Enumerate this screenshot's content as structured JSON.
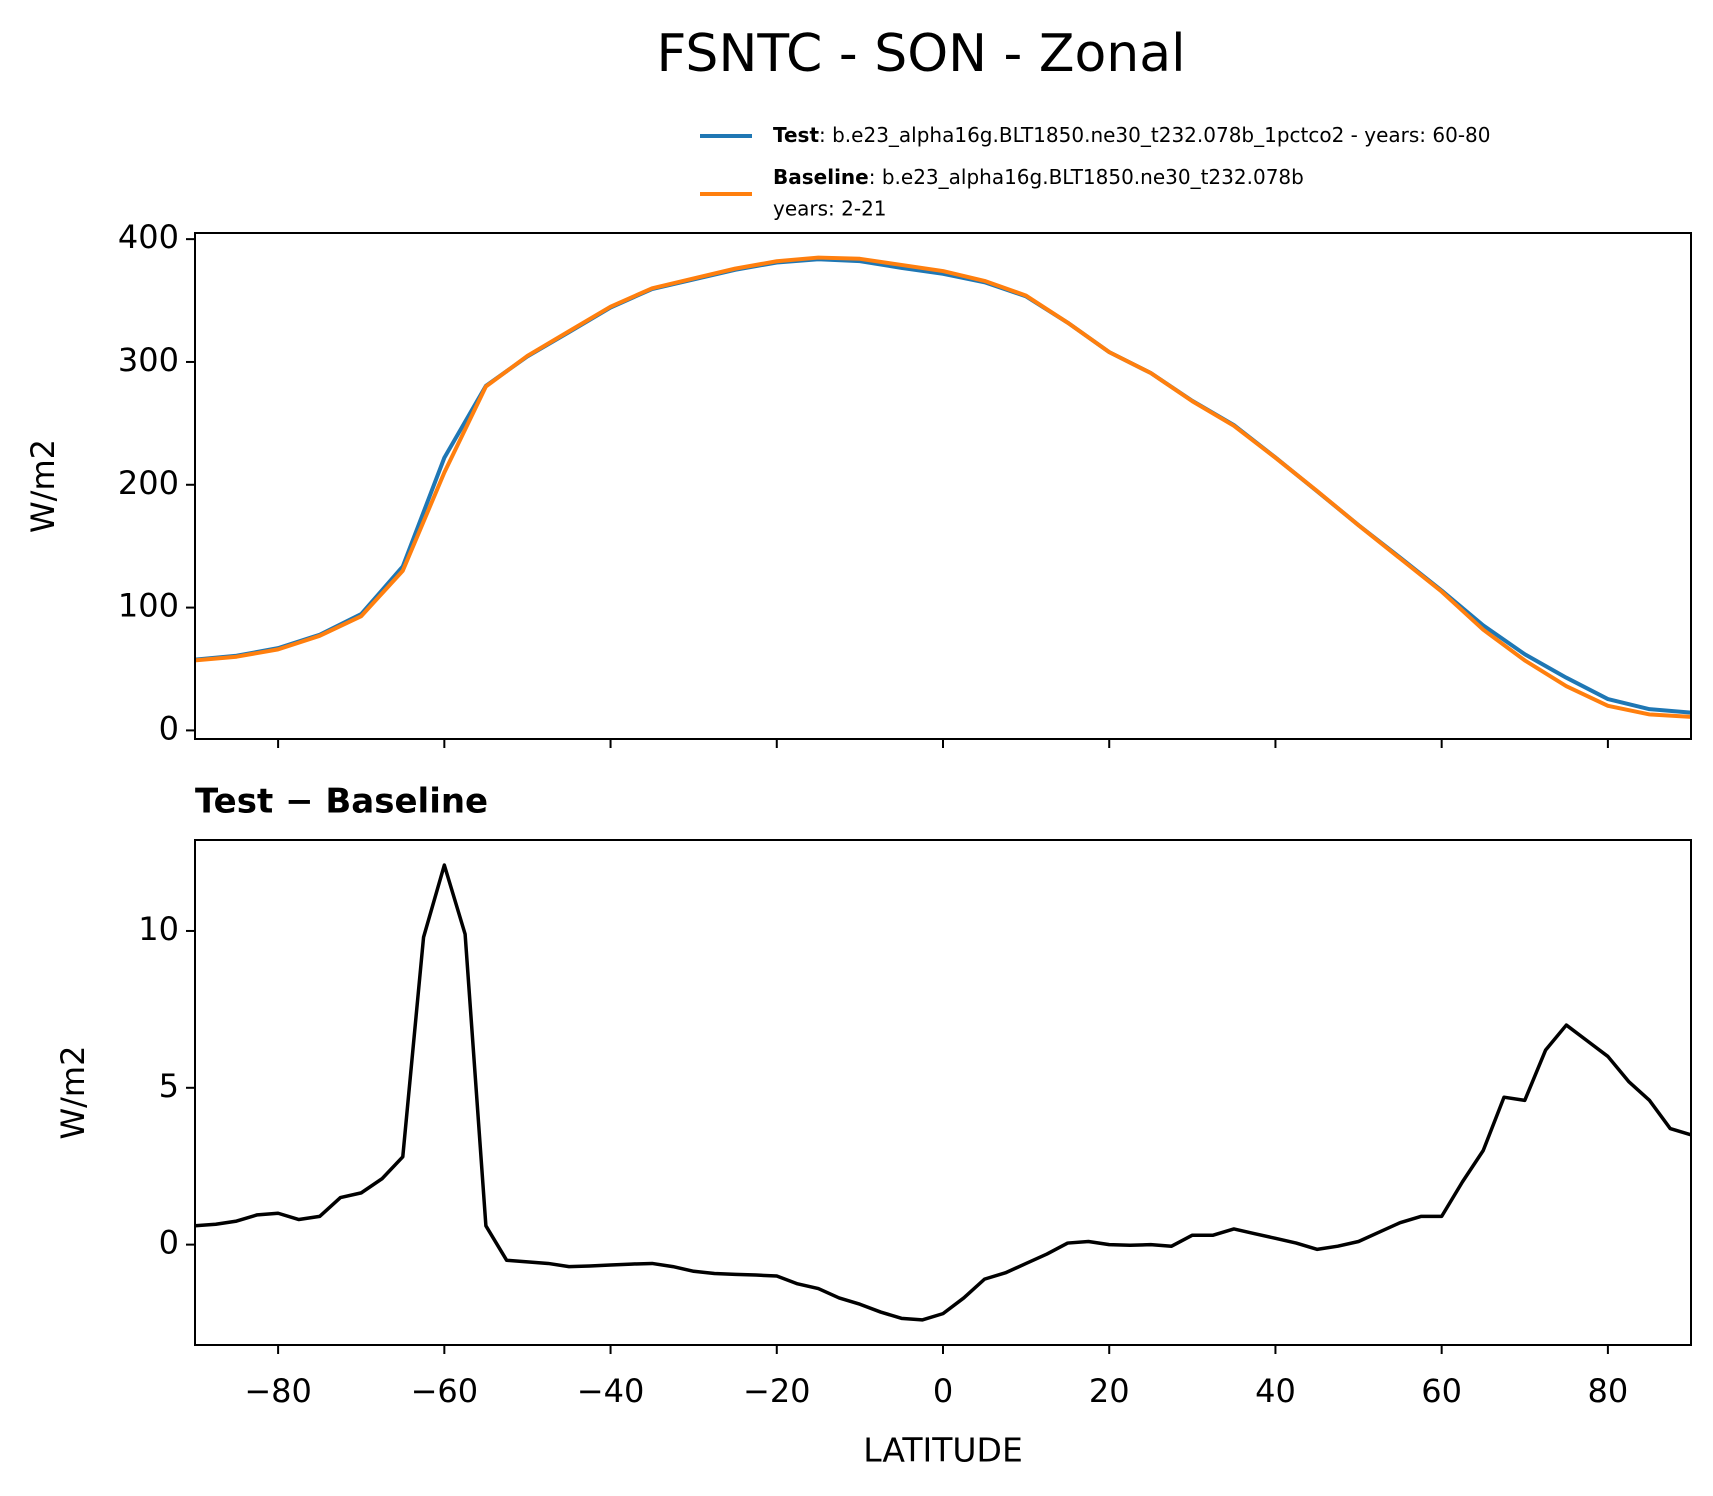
{
  "title": "FSNTC - SON - Zonal",
  "chart_data": [
    {
      "type": "line",
      "ylabel": "W/m2",
      "xlim": [
        -90,
        90
      ],
      "ylim": [
        -7,
        405
      ],
      "yticks": [
        0,
        100,
        200,
        300,
        400
      ],
      "x": [
        -90,
        -85,
        -80,
        -75,
        -70,
        -65,
        -60,
        -55,
        -50,
        -45,
        -40,
        -35,
        -30,
        -25,
        -20,
        -15,
        -10,
        -5,
        0,
        5,
        10,
        15,
        20,
        25,
        30,
        35,
        40,
        45,
        50,
        55,
        60,
        65,
        70,
        75,
        80,
        85,
        90
      ],
      "series": [
        {
          "name": "Test",
          "description": ": b.e23_alpha16g.BLT1850.ne30_t232.078b_1pctco2 - years: 60-80",
          "color": "#1f77b4",
          "values": [
            57.6,
            60.8,
            67,
            77.9,
            94.7,
            133.5,
            222,
            280.5,
            304.5,
            324.3,
            344.35,
            359.4,
            367.15,
            375.05,
            381,
            383.6,
            382.1,
            376.6,
            371.8,
            364.9,
            353.4,
            332,
            308,
            291,
            268.3,
            248.6,
            222.2,
            194.8,
            167.1,
            140.7,
            113.9,
            85.5,
            62,
            42.9,
            25.5,
            17.3,
            14.5
          ]
        },
        {
          "name": "Baseline",
          "description": ": b.e23_alpha16g.BLT1850.ne30_t232.078b",
          "description2": "years: 2-21",
          "color": "#ff7f0e",
          "values": [
            57,
            60,
            66,
            77,
            93,
            130,
            210,
            280,
            305,
            325,
            345,
            360,
            368,
            376,
            382,
            385,
            384,
            379,
            374,
            366,
            354,
            332,
            308,
            291,
            268,
            248,
            222,
            195,
            167,
            140,
            113,
            82,
            57,
            36,
            20,
            13,
            11
          ]
        }
      ]
    },
    {
      "type": "line",
      "subtitle": "Test − Baseline",
      "ylabel": "W/m2",
      "xlabel": "LATITUDE",
      "xlim": [
        -90,
        90
      ],
      "ylim": [
        -3.2,
        12.9
      ],
      "yticks": [
        0,
        5,
        10
      ],
      "xticks": [
        {
          "value": -80,
          "label": "−80"
        },
        {
          "value": -60,
          "label": "−60"
        },
        {
          "value": -40,
          "label": "−40"
        },
        {
          "value": -20,
          "label": "−20"
        },
        0,
        20,
        40,
        60,
        80
      ],
      "x": [
        -90,
        -87.5,
        -85,
        -82.5,
        -80,
        -77.5,
        -75,
        -72.5,
        -70,
        -67.5,
        -65,
        -62.5,
        -60,
        -57.5,
        -55,
        -52.5,
        -50,
        -47.5,
        -45,
        -42.5,
        -40,
        -37.5,
        -35,
        -32.5,
        -30,
        -27.5,
        -25,
        -22.5,
        -20,
        -17.5,
        -15,
        -12.5,
        -10,
        -7.5,
        -5,
        -2.5,
        0,
        2.5,
        5,
        7.5,
        10,
        12.5,
        15,
        17.5,
        20,
        22.5,
        25,
        27.5,
        30,
        32.5,
        35,
        37.5,
        40,
        42.5,
        45,
        47.5,
        50,
        52.5,
        55,
        57.5,
        60,
        62.5,
        65,
        67.5,
        70,
        72.5,
        75,
        77.5,
        80,
        82.5,
        85,
        87.5,
        90
      ],
      "series": [
        {
          "color": "#000000",
          "values": [
            0.6,
            0.65,
            0.75,
            0.95,
            1.0,
            0.8,
            0.9,
            1.5,
            1.65,
            2.1,
            2.8,
            9.8,
            12.1,
            9.9,
            0.6,
            -0.5,
            -0.55,
            -0.6,
            -0.7,
            -0.68,
            -0.65,
            -0.62,
            -0.6,
            -0.7,
            -0.85,
            -0.92,
            -0.95,
            -0.97,
            -1.0,
            -1.25,
            -1.4,
            -1.7,
            -1.9,
            -2.15,
            -2.35,
            -2.4,
            -2.2,
            -1.7,
            -1.1,
            -0.9,
            -0.6,
            -0.3,
            0.05,
            0.1,
            0.0,
            -0.02,
            0.0,
            -0.05,
            0.3,
            0.3,
            0.5,
            0.35,
            0.2,
            0.05,
            -0.15,
            -0.05,
            0.1,
            0.4,
            0.7,
            0.9,
            0.9,
            2.0,
            3.0,
            4.7,
            4.6,
            6.2,
            7.0,
            6.5,
            6.0,
            5.2,
            4.6,
            3.7,
            3.5
          ]
        }
      ]
    }
  ]
}
